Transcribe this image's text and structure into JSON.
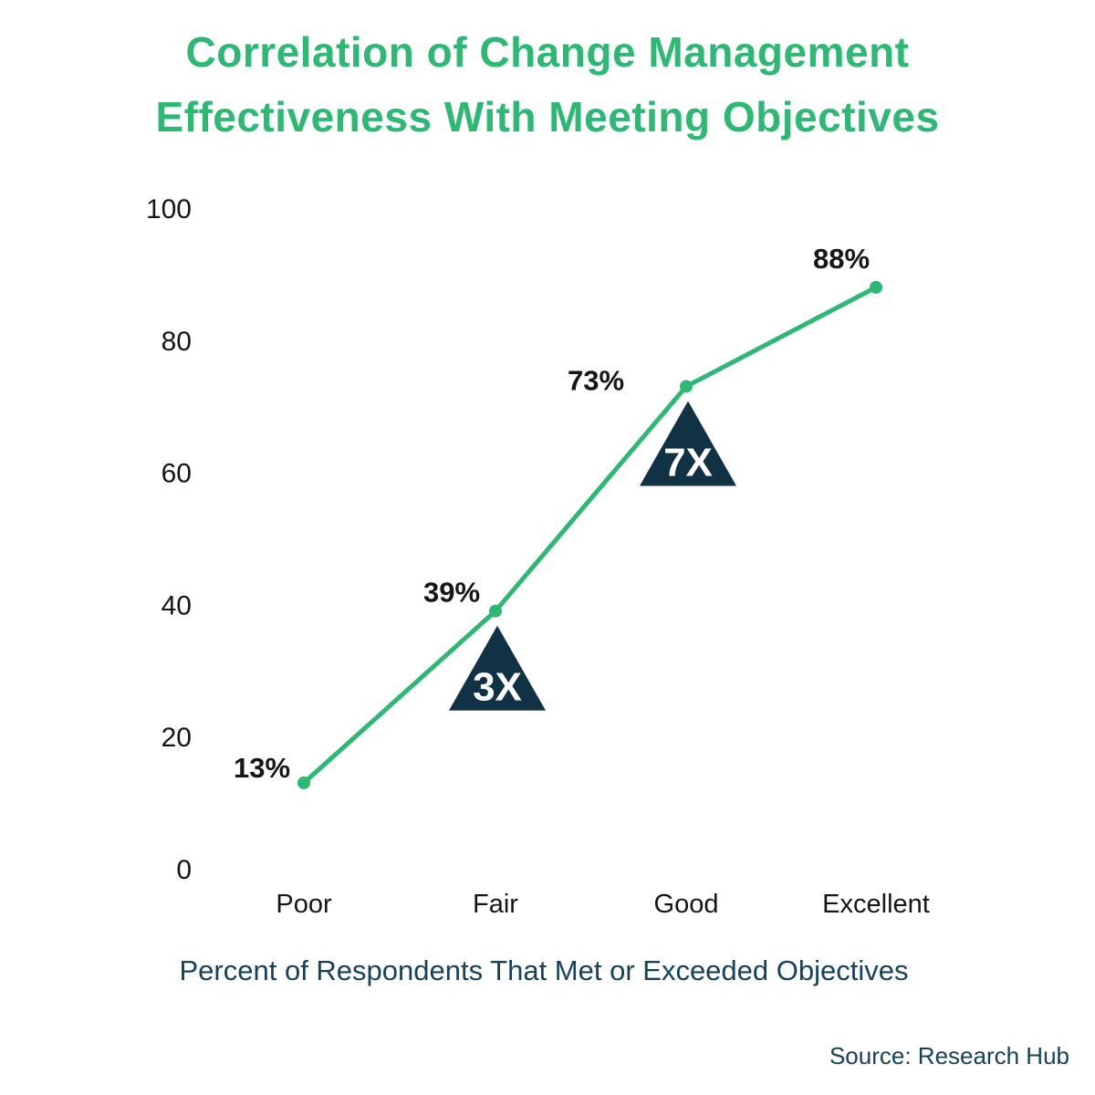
{
  "title": {
    "lines": [
      "Correlation of Change Management",
      "Effectiveness With Meeting Objectives"
    ]
  },
  "source": "Source: Research Hub",
  "colors": {
    "accent_green": "#2DB873",
    "annotation_navy": "#103244",
    "caption_navy": "#16425A",
    "label_black": "#161616"
  },
  "chart_data": {
    "type": "line",
    "title": "Correlation of Change Management Effectiveness With Meeting Objectives",
    "categories": [
      "Poor",
      "Fair",
      "Good",
      "Excellent"
    ],
    "values": [
      13,
      39,
      73,
      88
    ],
    "point_labels": [
      "13%",
      "39%",
      "73%",
      "88%"
    ],
    "annotations": [
      {
        "label": "3X",
        "category": "Fair"
      },
      {
        "label": "7X",
        "category": "Good"
      }
    ],
    "y_ticks": [
      0,
      20,
      40,
      60,
      80,
      100
    ],
    "ylim": [
      0,
      100
    ],
    "xlabel": "Percent of Respondents That Met or Exceeded Objectives",
    "legend": false,
    "grid": false
  }
}
